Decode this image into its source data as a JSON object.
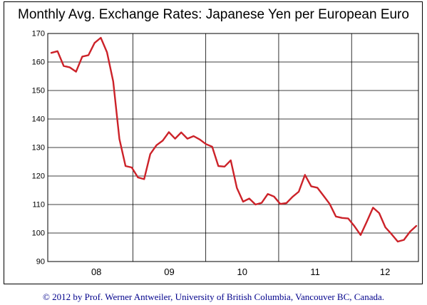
{
  "chart_data": {
    "type": "line",
    "title": "Monthly Avg. Exchange Rates: Japanese Yen per European Euro",
    "xlabel": "",
    "ylabel": "",
    "ylim": [
      90,
      170
    ],
    "yticks": [
      90,
      100,
      110,
      120,
      130,
      140,
      150,
      160,
      170
    ],
    "year_labels": [
      "08",
      "09",
      "10",
      "11",
      "12"
    ],
    "grid": true,
    "x_start": "2007-11",
    "x_end": "2012-12",
    "line_color": "#cc2229",
    "series": [
      {
        "values": [
          163.2,
          163.8,
          158.6,
          158.1,
          156.6,
          161.9,
          162.4,
          166.7,
          168.5,
          163.4,
          153.2,
          133.0,
          123.5,
          123.0,
          119.5,
          118.9,
          127.7,
          130.8,
          132.4,
          135.4,
          133.1,
          135.3,
          133.1,
          134.0,
          132.8,
          131.2,
          130.3,
          123.5,
          123.3,
          125.5,
          115.8,
          111.0,
          112.1,
          110.0,
          110.6,
          113.7,
          112.8,
          110.2,
          110.5,
          112.7,
          114.5,
          120.4,
          116.4,
          115.9,
          113.1,
          110.2,
          105.8,
          105.3,
          105.1,
          102.4,
          99.3,
          104.0,
          108.9,
          107.0,
          102.0,
          99.6,
          97.0,
          97.6,
          100.5,
          102.5
        ]
      }
    ]
  },
  "footer": {
    "credit": "© 2012 by Prof. Werner Antweiler, University of British Columbia, Vancouver BC, Canada."
  }
}
